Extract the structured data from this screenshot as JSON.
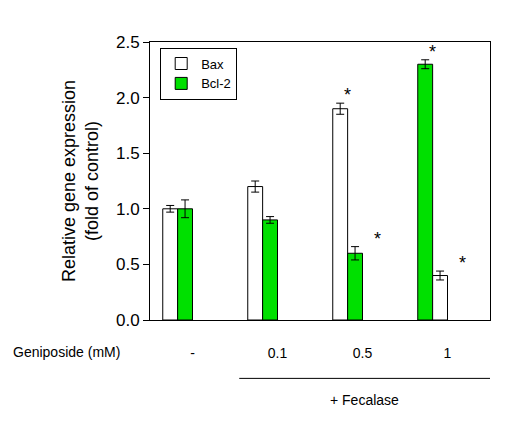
{
  "chart_data": {
    "type": "bar",
    "y_label": "Relative gene expression\n(fold of control)",
    "x_label": "Geniposide (mM)",
    "categories": [
      "-",
      "0.1",
      "0.5",
      "1"
    ],
    "series": [
      {
        "name": "Bax",
        "color": "#ffffff",
        "colors": [
          "#ffffff",
          "#ffffff",
          "#ffffff",
          "#00e000"
        ],
        "values": [
          1.0,
          1.2,
          1.9,
          2.3
        ],
        "errors": [
          0.03,
          0.05,
          0.05,
          0.04
        ]
      },
      {
        "name": "Bcl-2",
        "color": "#00e000",
        "colors": [
          "#00e000",
          "#00e000",
          "#00e000",
          "#ffffff"
        ],
        "values": [
          1.0,
          0.9,
          0.6,
          0.4
        ],
        "errors": [
          0.08,
          0.03,
          0.06,
          0.04
        ]
      }
    ],
    "ylim": [
      0,
      2.5
    ],
    "yticks": [
      {
        "value": 0,
        "label": "0.0"
      },
      0.5,
      {
        "value": 1,
        "label": "1.0"
      },
      1.5,
      {
        "value": 2,
        "label": "2.0"
      },
      2.5
    ],
    "legend": "top left",
    "grid": false,
    "annotations": [
      {
        "text": "*",
        "category": "0.5",
        "series": "Bax"
      },
      {
        "text": "*",
        "category": "0.5",
        "series": "Bcl-2"
      },
      {
        "text": "*",
        "category": "1",
        "series": "Bax"
      },
      {
        "text": "*",
        "category": "1",
        "series": "Bcl-2"
      },
      {
        "text": "+ Fecalase",
        "from": "0.1",
        "to": "1"
      }
    ]
  }
}
